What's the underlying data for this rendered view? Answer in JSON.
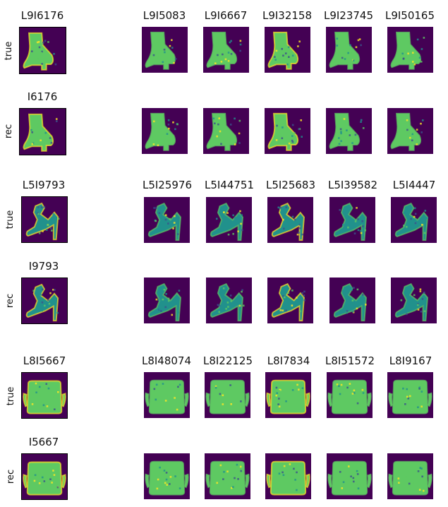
{
  "colors": {
    "bg": "#440154",
    "dark": "#3b528b",
    "mid": "#21918c",
    "light": "#5ec962",
    "bright": "#fde725"
  },
  "groups": [
    {
      "kind": "boot",
      "true_label": "true",
      "rec_label": "rec",
      "true_titles": [
        "L9I6176",
        "L9I5083",
        "L9I6667",
        "L9I32158",
        "L9I23745",
        "L9I50165"
      ],
      "rec_title": "I6176"
    },
    {
      "kind": "sandal",
      "true_label": "true",
      "rec_label": "rec",
      "true_titles": [
        "L5I9793",
        "L5I25976",
        "L5I44751",
        "L5I25683",
        "L5I39582",
        "L5I4447"
      ],
      "rec_title": "I9793"
    },
    {
      "kind": "bag",
      "true_label": "true",
      "rec_label": "rec",
      "true_titles": [
        "L8I5667",
        "L8I48074",
        "L8I22125",
        "L8I7834",
        "L8I51572",
        "L8I9167"
      ],
      "rec_title": "I5667"
    }
  ]
}
